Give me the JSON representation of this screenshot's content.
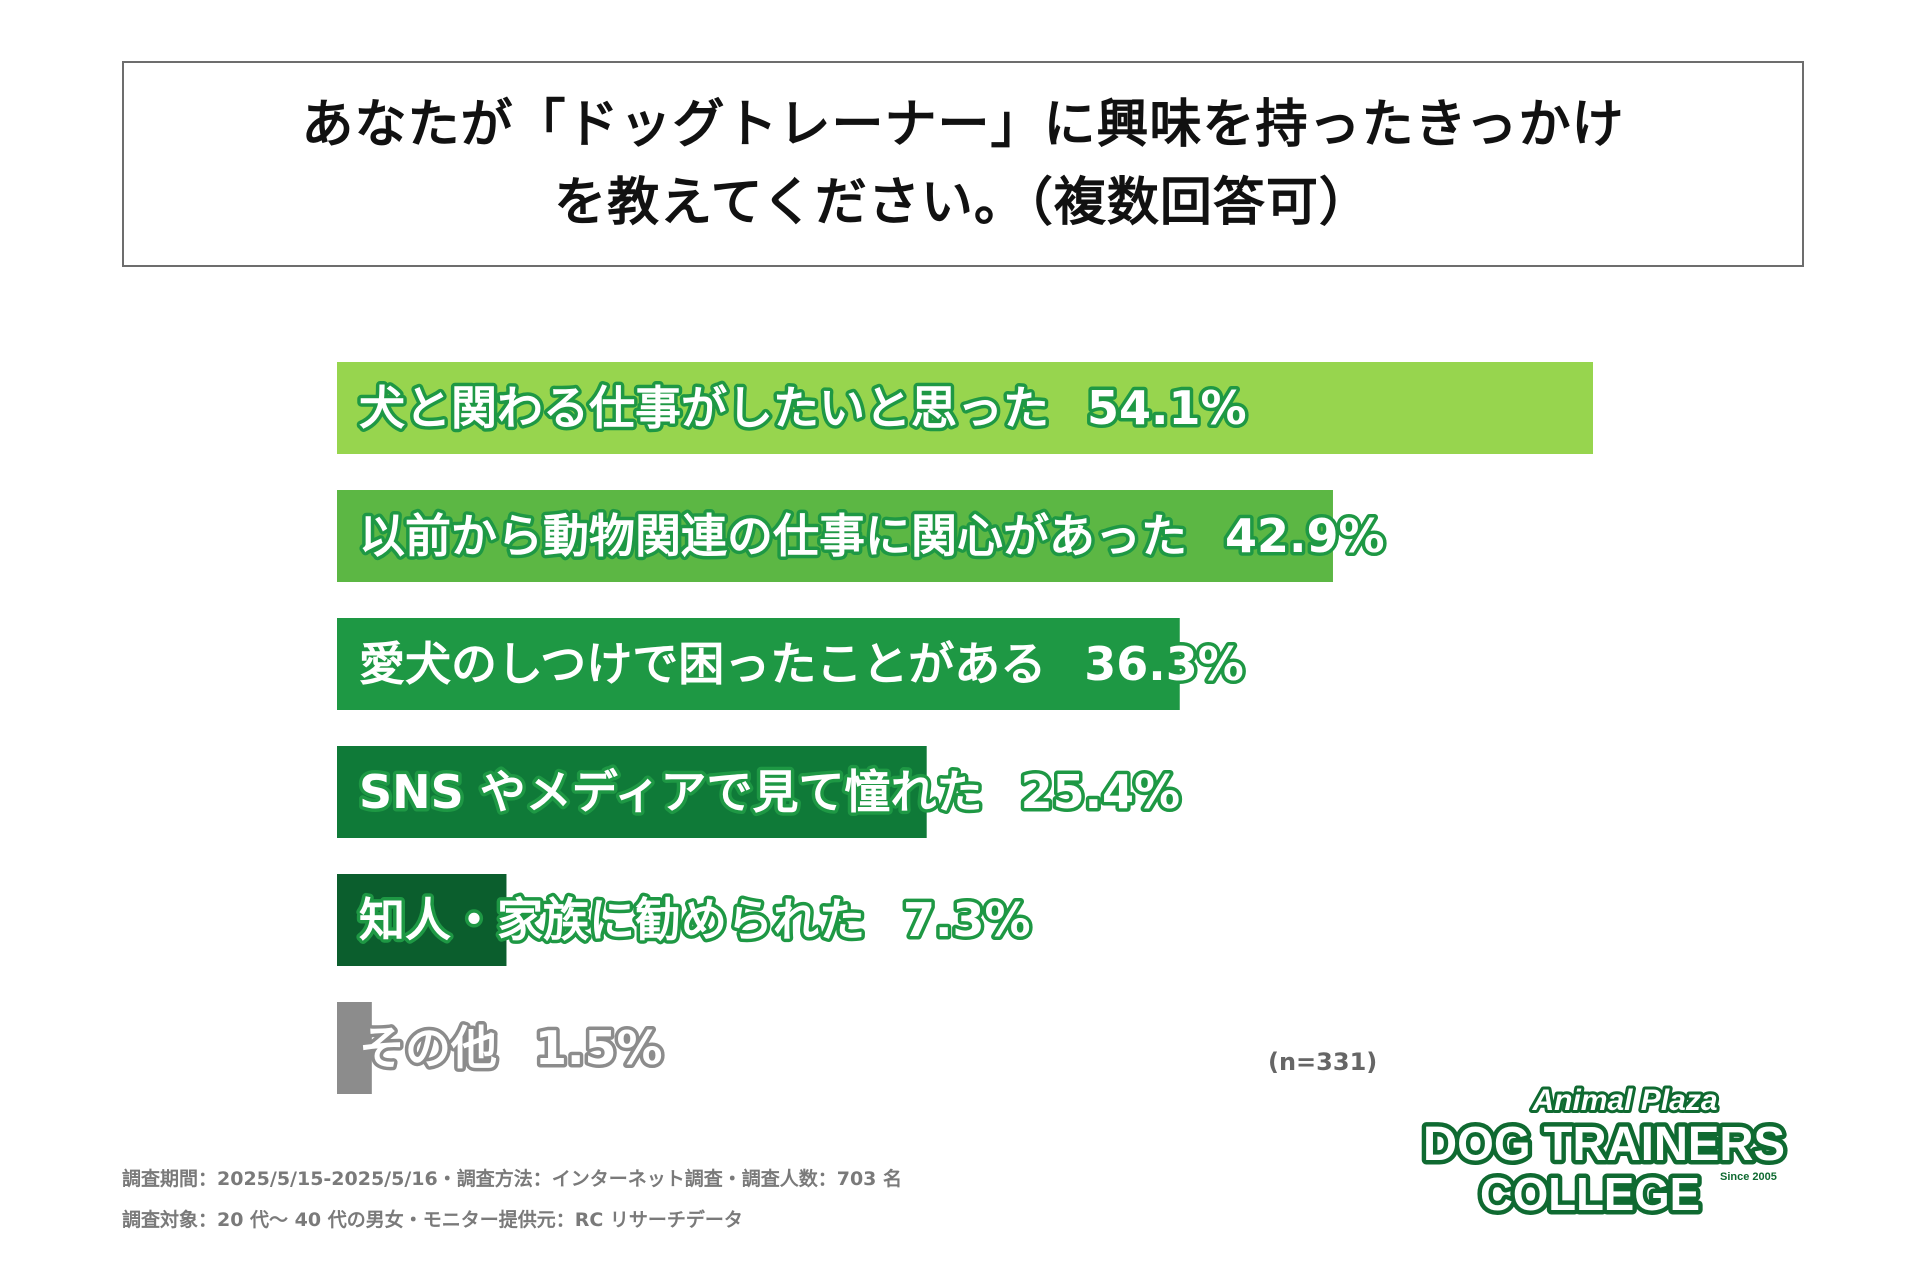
{
  "title": {
    "line1": "あなたが「ドッグトレーナー」に興味を持ったきっかけ",
    "line2": "を教えてください。（複数回答可）"
  },
  "chart_data": {
    "type": "bar",
    "orientation": "horizontal",
    "categories": [
      "犬と関わる仕事がしたいと思った",
      "以前から動物関連の仕事に関心があった",
      "愛犬のしつけで困ったことがある",
      "SNS やメディアで見て憧れた",
      "知人・家族に勧められた",
      "その他"
    ],
    "values": [
      54.1,
      42.9,
      36.3,
      25.4,
      7.3,
      1.5
    ],
    "value_labels": [
      "54.1%",
      "42.9%",
      "36.3%",
      "25.4%",
      "7.3%",
      "1.5%"
    ],
    "colors": [
      "#97d54e",
      "#5cb744",
      "#1e9844",
      "#0f7a38",
      "#0b5e2d",
      "#8c8c8c"
    ],
    "xlim": [
      0,
      54.1
    ],
    "grid": false,
    "legend": "none"
  },
  "sample_size": "(n=331)",
  "footnotes": {
    "line1": "調査期間：2025/5/15-2025/5/16・調査方法：インターネット調査・調査人数：703 名",
    "line2": "調査対象：20 代〜 40 代の男女・モニター提供元：RC リサーチデータ"
  },
  "logo": {
    "line1": "Animal Plaza",
    "line2": "DOG TRAINERS",
    "line3": "COLLEGE",
    "since": "Since 2005",
    "color": "#0f6a31"
  }
}
